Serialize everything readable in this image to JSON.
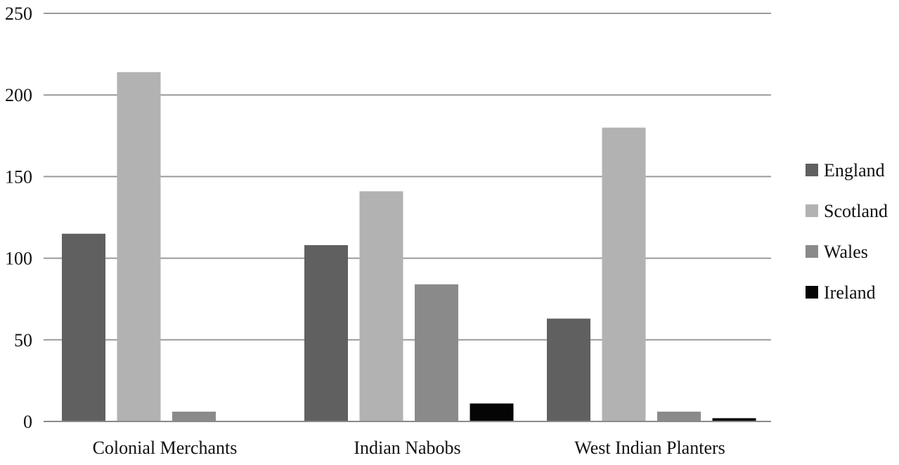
{
  "chart_data": {
    "type": "bar",
    "title": "",
    "xlabel": "",
    "ylabel": "",
    "ylim": [
      0,
      250
    ],
    "yticks": [
      0,
      50,
      100,
      150,
      200,
      250
    ],
    "grid": true,
    "legend_position": "right",
    "categories": [
      "Colonial Merchants",
      "Indian Nabobs",
      "West Indian Planters"
    ],
    "series": [
      {
        "name": "England",
        "color": "#606060",
        "values": [
          115,
          108,
          63
        ]
      },
      {
        "name": "Scotland",
        "color": "#b2b2b2",
        "values": [
          214,
          141,
          180
        ]
      },
      {
        "name": "Wales",
        "color": "#8a8a8a",
        "values": [
          6,
          84,
          6
        ]
      },
      {
        "name": "Ireland",
        "color": "#050505",
        "values": [
          0,
          11,
          2
        ]
      }
    ]
  }
}
